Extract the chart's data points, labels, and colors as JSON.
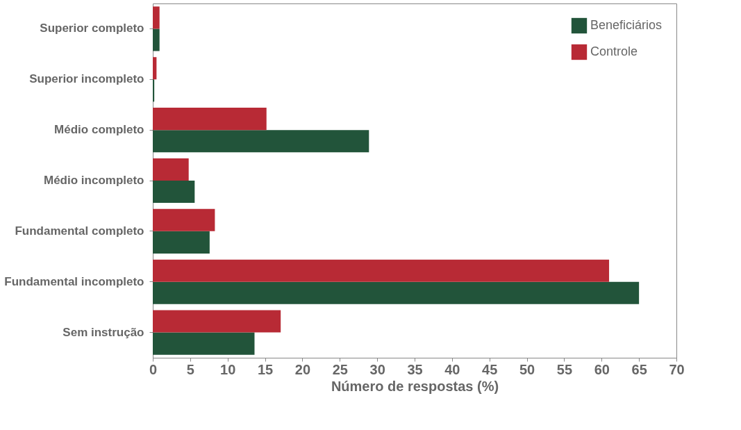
{
  "chart_data": {
    "type": "bar",
    "orientation": "horizontal",
    "xlabel": "Número de respostas (%)",
    "categories": [
      "Superior completo",
      "Superior incompleto",
      "Médio completo",
      "Médio incompleto",
      "Fundamental completo",
      "Fundamental incompleto",
      "Sem instrução"
    ],
    "series": [
      {
        "name": "Beneficiários",
        "color": "#22543a",
        "values": [
          0.9,
          0.2,
          28.9,
          5.6,
          7.6,
          65.0,
          13.6
        ]
      },
      {
        "name": "Controle",
        "color": "#b82a35",
        "values": [
          0.9,
          0.5,
          15.2,
          4.8,
          8.3,
          61.0,
          17.1
        ]
      }
    ],
    "xlim": [
      0,
      70
    ],
    "xticks": [
      0,
      5,
      10,
      15,
      20,
      25,
      30,
      35,
      40,
      45,
      50,
      55,
      60,
      65,
      70
    ],
    "grid": false,
    "legend": "top right"
  }
}
